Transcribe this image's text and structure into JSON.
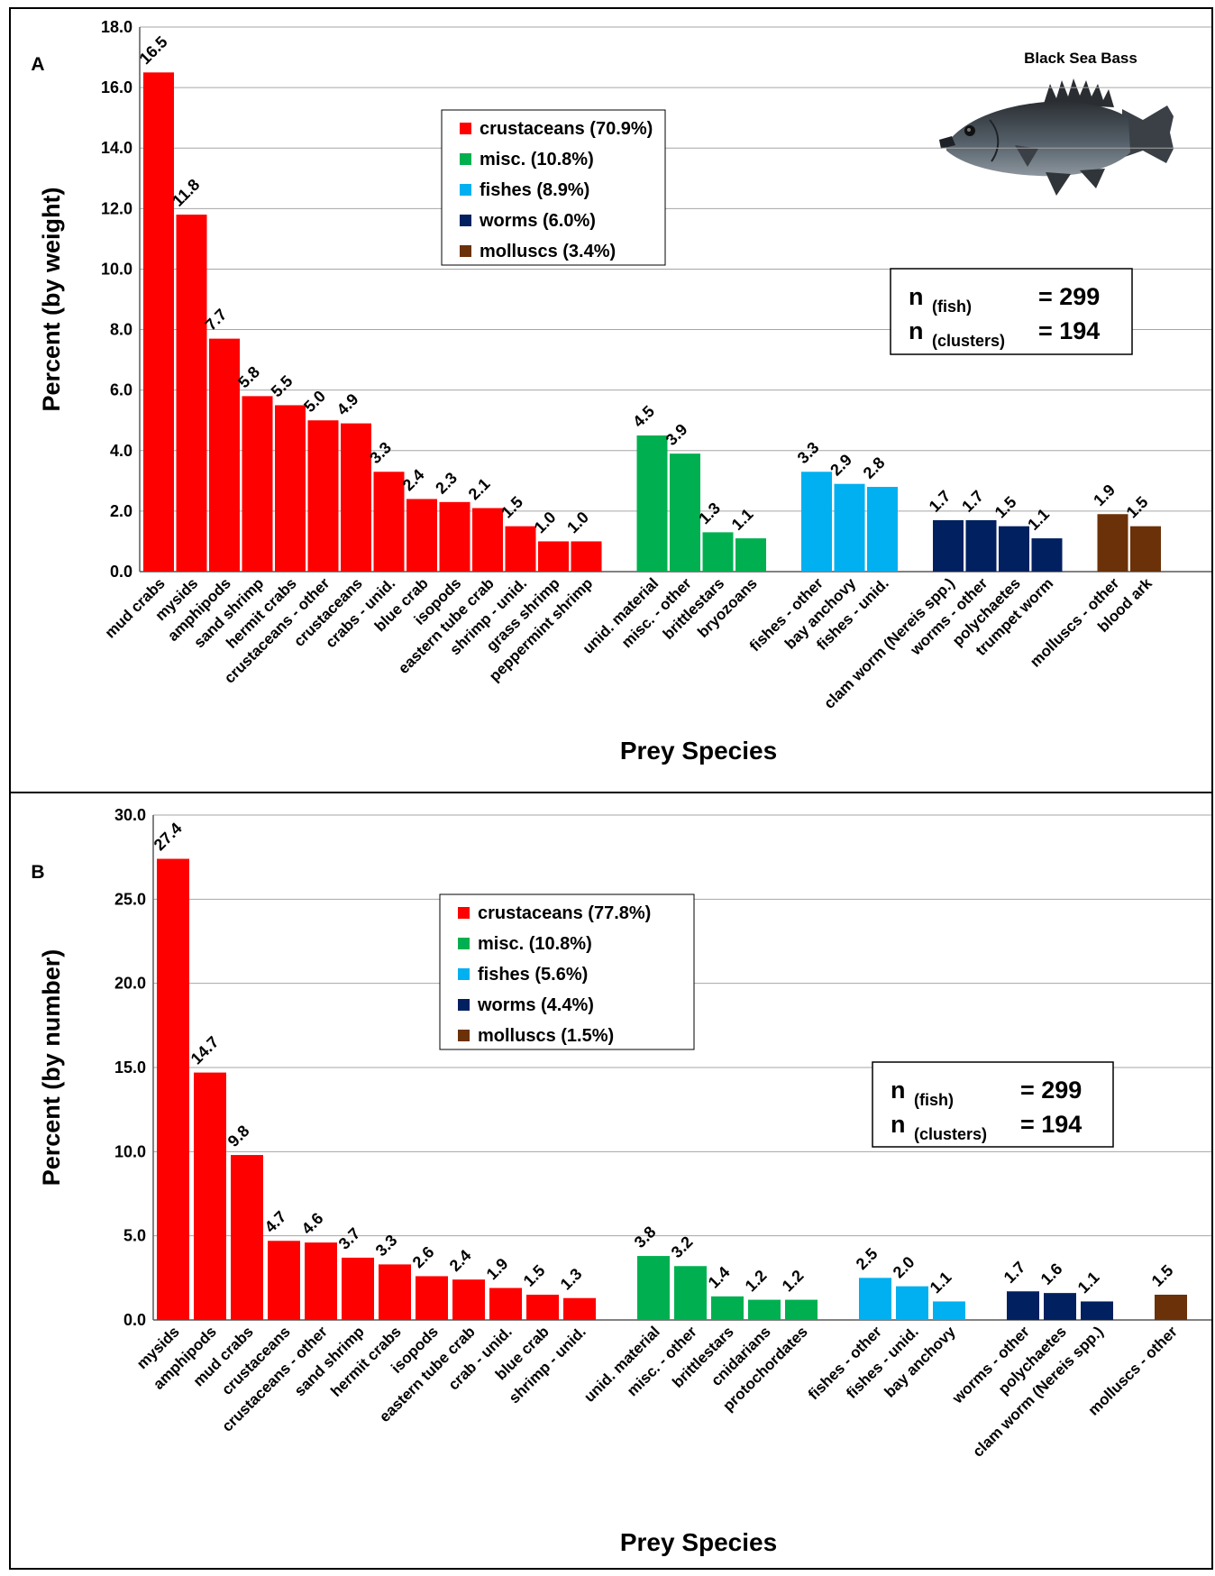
{
  "figure_title": "Black Sea Bass",
  "colors": {
    "crustaceans": "#ff0000",
    "misc": "#00b050",
    "fishes": "#00b0f0",
    "worms": "#002060",
    "molluscs": "#6b3108"
  },
  "chart_data": [
    {
      "type": "bar",
      "panel_label": "A",
      "xlabel": "Prey Species",
      "ylabel": "Percent (by weight)",
      "ylim": [
        0,
        18
      ],
      "ytick_step": 2,
      "yticks": [
        "0.0",
        "2.0",
        "4.0",
        "6.0",
        "8.0",
        "10.0",
        "12.0",
        "14.0",
        "16.0",
        "18.0"
      ],
      "grid": true,
      "legend_position": "top-center",
      "legend": [
        {
          "group": "crustaceans",
          "label": "crustaceans (70.9%)"
        },
        {
          "group": "misc",
          "label": "misc. (10.8%)"
        },
        {
          "group": "fishes",
          "label": "fishes (8.9%)"
        },
        {
          "group": "worms",
          "label": "worms (6.0%)"
        },
        {
          "group": "molluscs",
          "label": "molluscs (3.4%)"
        }
      ],
      "n_box": {
        "row1_main": "n",
        "row1_sub": "(fish)",
        "row1_value": "= 299",
        "row2_main": "n",
        "row2_sub": "(clusters)",
        "row2_value": "= 194"
      },
      "bars": [
        {
          "category": "mud crabs",
          "value": 16.5,
          "label": "16.5",
          "group": "crustaceans"
        },
        {
          "category": "mysids",
          "value": 11.8,
          "label": "11.8",
          "group": "crustaceans"
        },
        {
          "category": "amphipods",
          "value": 7.7,
          "label": "7.7",
          "group": "crustaceans"
        },
        {
          "category": "sand shrimp",
          "value": 5.8,
          "label": "5.8",
          "group": "crustaceans"
        },
        {
          "category": "hermit crabs",
          "value": 5.5,
          "label": "5.5",
          "group": "crustaceans"
        },
        {
          "category": "crustaceans - other",
          "value": 5.0,
          "label": "5.0",
          "group": "crustaceans"
        },
        {
          "category": "crustaceans",
          "value": 4.9,
          "label": "4.9",
          "group": "crustaceans"
        },
        {
          "category": "crabs - unid.",
          "value": 3.3,
          "label": "3.3",
          "group": "crustaceans"
        },
        {
          "category": "blue crab",
          "value": 2.4,
          "label": "2.4",
          "group": "crustaceans"
        },
        {
          "category": "isopods",
          "value": 2.3,
          "label": "2.3",
          "group": "crustaceans"
        },
        {
          "category": "eastern tube crab",
          "value": 2.1,
          "label": "2.1",
          "group": "crustaceans"
        },
        {
          "category": "shrimp - unid.",
          "value": 1.5,
          "label": "1.5",
          "group": "crustaceans"
        },
        {
          "category": "grass shrimp",
          "value": 1.0,
          "label": "1.0",
          "group": "crustaceans"
        },
        {
          "category": "peppermint shrimp",
          "value": 1.0,
          "label": "1.0",
          "group": "crustaceans"
        },
        {
          "category": "unid. material",
          "value": 4.5,
          "label": "4.5",
          "group": "misc"
        },
        {
          "category": "misc. - other",
          "value": 3.9,
          "label": "3.9",
          "group": "misc"
        },
        {
          "category": "brittlestars",
          "value": 1.3,
          "label": "1.3",
          "group": "misc"
        },
        {
          "category": "bryozoans",
          "value": 1.1,
          "label": "1.1",
          "group": "misc"
        },
        {
          "category": "fishes - other",
          "value": 3.3,
          "label": "3.3",
          "group": "fishes"
        },
        {
          "category": "bay anchovy",
          "value": 2.9,
          "label": "2.9",
          "group": "fishes"
        },
        {
          "category": "fishes - unid.",
          "value": 2.8,
          "label": "2.8",
          "group": "fishes"
        },
        {
          "category": "clam worm (Nereis spp.)",
          "value": 1.7,
          "label": "1.7",
          "group": "worms"
        },
        {
          "category": "worms - other",
          "value": 1.7,
          "label": "1.7",
          "group": "worms"
        },
        {
          "category": "polychaetes",
          "value": 1.5,
          "label": "1.5",
          "group": "worms"
        },
        {
          "category": "trumpet worm",
          "value": 1.1,
          "label": "1.1",
          "group": "worms"
        },
        {
          "category": "molluscs - other",
          "value": 1.9,
          "label": "1.9",
          "group": "molluscs"
        },
        {
          "category": "blood ark",
          "value": 1.5,
          "label": "1.5",
          "group": "molluscs"
        }
      ]
    },
    {
      "type": "bar",
      "panel_label": "B",
      "xlabel": "Prey Species",
      "ylabel": "Percent (by number)",
      "ylim": [
        0,
        30
      ],
      "ytick_step": 5,
      "yticks": [
        "0.0",
        "5.0",
        "10.0",
        "15.0",
        "20.0",
        "25.0",
        "30.0"
      ],
      "grid": true,
      "legend_position": "top-center",
      "legend": [
        {
          "group": "crustaceans",
          "label": "crustaceans (77.8%)"
        },
        {
          "group": "misc",
          "label": "misc. (10.8%)"
        },
        {
          "group": "fishes",
          "label": "fishes (5.6%)"
        },
        {
          "group": "worms",
          "label": "worms (4.4%)"
        },
        {
          "group": "molluscs",
          "label": "molluscs (1.5%)"
        }
      ],
      "n_box": {
        "row1_main": "n",
        "row1_sub": "(fish)",
        "row1_value": "= 299",
        "row2_main": "n",
        "row2_sub": "(clusters)",
        "row2_value": "= 194"
      },
      "bars": [
        {
          "category": "mysids",
          "value": 27.4,
          "label": "27.4",
          "group": "crustaceans"
        },
        {
          "category": "amphipods",
          "value": 14.7,
          "label": "14.7",
          "group": "crustaceans"
        },
        {
          "category": "mud crabs",
          "value": 9.8,
          "label": "9.8",
          "group": "crustaceans"
        },
        {
          "category": "crustaceans",
          "value": 4.7,
          "label": "4.7",
          "group": "crustaceans"
        },
        {
          "category": "crustaceans - other",
          "value": 4.6,
          "label": "4.6",
          "group": "crustaceans"
        },
        {
          "category": "sand shrimp",
          "value": 3.7,
          "label": "3.7",
          "group": "crustaceans"
        },
        {
          "category": "hermit crabs",
          "value": 3.3,
          "label": "3.3",
          "group": "crustaceans"
        },
        {
          "category": "isopods",
          "value": 2.6,
          "label": "2.6",
          "group": "crustaceans"
        },
        {
          "category": "eastern tube crab",
          "value": 2.4,
          "label": "2.4",
          "group": "crustaceans"
        },
        {
          "category": "crab - unid.",
          "value": 1.9,
          "label": "1.9",
          "group": "crustaceans"
        },
        {
          "category": "blue crab",
          "value": 1.5,
          "label": "1.5",
          "group": "crustaceans"
        },
        {
          "category": "shrimp - unid.",
          "value": 1.3,
          "label": "1.3",
          "group": "crustaceans"
        },
        {
          "category": "unid. material",
          "value": 3.8,
          "label": "3.8",
          "group": "misc"
        },
        {
          "category": "misc. - other",
          "value": 3.2,
          "label": "3.2",
          "group": "misc"
        },
        {
          "category": "brittlestars",
          "value": 1.4,
          "label": "1.4",
          "group": "misc"
        },
        {
          "category": "cnidarians",
          "value": 1.2,
          "label": "1.2",
          "group": "misc"
        },
        {
          "category": "protochordates",
          "value": 1.2,
          "label": "1.2",
          "group": "misc"
        },
        {
          "category": "fishes - other",
          "value": 2.5,
          "label": "2.5",
          "group": "fishes"
        },
        {
          "category": "fishes - unid.",
          "value": 2.0,
          "label": "2.0",
          "group": "fishes"
        },
        {
          "category": "bay anchovy",
          "value": 1.1,
          "label": "1.1",
          "group": "fishes"
        },
        {
          "category": "worms - other",
          "value": 1.7,
          "label": "1.7",
          "group": "worms"
        },
        {
          "category": "polychaetes",
          "value": 1.6,
          "label": "1.6",
          "group": "worms"
        },
        {
          "category": "clam worm (Nereis spp.)",
          "value": 1.1,
          "label": "1.1",
          "group": "worms"
        },
        {
          "category": "molluscs - other",
          "value": 1.5,
          "label": "1.5",
          "group": "molluscs"
        }
      ]
    }
  ]
}
